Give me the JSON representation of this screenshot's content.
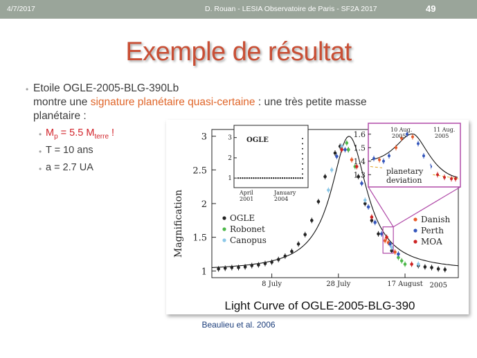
{
  "header": {
    "date": "4/7/2017",
    "center": "D. Rouan - LESIA Observatoire de Paris - SF2A 2017",
    "page": "49"
  },
  "slide": {
    "title": "Exemple de résultat",
    "bullet_line1": "Etoile OGLE-2005-BLG-390Lb",
    "bullet_line2_pre": "montre une ",
    "bullet_line2_accent": "signature planétaire quasi-certaine",
    "bullet_line2_post": " : une très petite masse",
    "bullet_line3": "planétaire :",
    "sub1_M": "M",
    "sub1_p": "p",
    "sub1_mid": " = 5.5 M",
    "sub1_terre": "terre",
    "sub1_excl": " !",
    "sub2": "T = 10 ans",
    "sub3": "a = 2.7 UA",
    "caption": "Beaulieu et al. 2006"
  },
  "colors": {
    "topbar": "#9aa59a",
    "title": "#c94f35",
    "accent": "#e0662a",
    "red": "#d2232a",
    "ogle": "#222222",
    "robonet": "#4db84a",
    "canopus": "#8cc8e8",
    "danish": "#e85a2a",
    "perth": "#3355bb",
    "moa": "#cc2222",
    "inset_frame": "#b04aa8"
  },
  "chart_data": {
    "type": "scatter",
    "title": "Light Curve of OGLE-2005-BLG-390",
    "ylabel": "Magnification",
    "xlabel": "",
    "year_label": "2005",
    "x_ticks": [
      "8 July",
      "28 July",
      "17 August"
    ],
    "x_tick_days": [
      8,
      28,
      48
    ],
    "y_ticks": [
      "1",
      "1.5",
      "2",
      "2.5",
      "3"
    ],
    "ylim": [
      0.9,
      3.1
    ],
    "xlim": [
      -10,
      64
    ],
    "legend_left": [
      "OGLE",
      "Robonet",
      "Canopus"
    ],
    "legend_right": [
      "Danish",
      "Perth",
      "MOA"
    ],
    "model_peak_day": 31.2,
    "model_peak_mag": 3.0,
    "series": [
      {
        "name": "OGLE",
        "x": [
          -8,
          -6,
          -4,
          -2,
          0,
          2,
          4,
          6,
          8,
          10,
          12,
          14,
          16,
          18,
          20,
          22,
          24,
          27,
          28.5,
          31,
          34,
          36,
          38,
          40,
          44,
          52,
          54,
          56,
          58,
          60
        ],
        "y": [
          1.03,
          1.04,
          1.05,
          1.05,
          1.06,
          1.08,
          1.09,
          1.11,
          1.13,
          1.17,
          1.22,
          1.29,
          1.4,
          1.54,
          1.75,
          2.03,
          2.4,
          2.75,
          2.85,
          2.8,
          2.4,
          2.0,
          1.75,
          1.55,
          1.3,
          1.08,
          1.06,
          1.05,
          1.03,
          1.02
        ]
      },
      {
        "name": "Robonet",
        "x": [
          30.5,
          31,
          33,
          47,
          48,
          46
        ],
        "y": [
          2.9,
          2.8,
          2.55,
          1.15,
          1.1,
          1.2
        ]
      },
      {
        "name": "Canopus",
        "x": [
          25,
          26,
          29,
          36,
          44,
          52
        ],
        "y": [
          2.2,
          2.5,
          2.85,
          2.05,
          1.35,
          1.1
        ]
      },
      {
        "name": "Danish",
        "x": [
          32,
          42,
          43,
          45
        ],
        "y": [
          2.65,
          1.45,
          1.42,
          1.28
        ]
      },
      {
        "name": "Perth",
        "x": [
          27.5,
          30,
          35,
          37,
          39,
          41,
          43.5,
          46
        ],
        "y": [
          2.7,
          2.8,
          2.3,
          1.95,
          1.72,
          1.55,
          1.4,
          1.25
        ]
      },
      {
        "name": "MOA",
        "x": [
          29,
          33.5,
          38,
          42.5,
          50
        ],
        "y": [
          2.8,
          2.55,
          1.8,
          1.5,
          1.1
        ]
      }
    ],
    "inset_ogle": {
      "title": "OGLE",
      "y_ticks": [
        "1",
        "2",
        "3"
      ],
      "x_ticks": [
        "April 2001",
        "January 2004"
      ]
    },
    "inset_deviation": {
      "title": "planetary deviation",
      "y_ticks": [
        "1.3",
        "1.4",
        "1.5",
        "1.6"
      ],
      "annotations": [
        "10 Aug. 2005",
        "11 Aug. 2005"
      ]
    }
  }
}
